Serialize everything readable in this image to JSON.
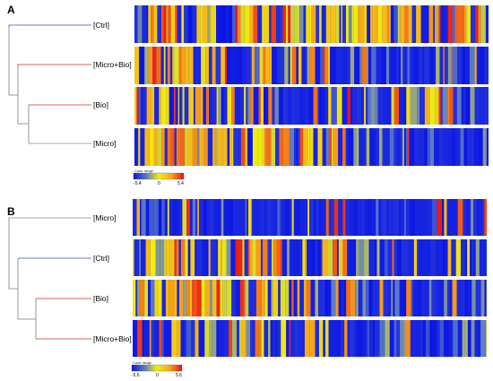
{
  "palette": {
    "low": "#0a14e6",
    "lowmid": "#5a78c8",
    "mid": "#f0ee10",
    "highmid": "#f7a81a",
    "high": "#ee1010",
    "branch_blue": "#3a4fb8",
    "branch_red": "#cc2a2a",
    "branch_gray": "#8a8a8a"
  },
  "panels": [
    {
      "letter": "A",
      "seed": 101,
      "color_range": {
        "title": "Color range",
        "min_label": "-5.4",
        "mid_label": "0",
        "max_label": "5.4"
      },
      "rows": [
        {
          "label": "[Ctrl]",
          "branch": "branch_blue",
          "profile": [
            0.62,
            0.66,
            0.7,
            0.72
          ]
        },
        {
          "label": "[Micro+Bio]",
          "branch": "branch_red",
          "profile": [
            0.6,
            0.48,
            0.12,
            0.04
          ]
        },
        {
          "label": "[Bio]",
          "branch": "branch_red",
          "profile": [
            0.62,
            0.45,
            0.3,
            0.22
          ]
        },
        {
          "label": "[Micro]",
          "branch": "branch_gray",
          "profile": [
            0.72,
            0.55,
            0.1,
            0.05
          ]
        }
      ]
    },
    {
      "letter": "B",
      "seed": 202,
      "color_range": {
        "title": "Color range",
        "min_label": "-5.6",
        "mid_label": "0",
        "max_label": "5.6"
      },
      "rows": [
        {
          "label": "[Micro]",
          "branch": "branch_gray",
          "profile": [
            0.35,
            0.22,
            0.1,
            0.12
          ]
        },
        {
          "label": "[Ctrl]",
          "branch": "branch_blue",
          "profile": [
            0.55,
            0.62,
            0.15,
            0.08
          ]
        },
        {
          "label": "[Bio]",
          "branch": "branch_red",
          "profile": [
            0.62,
            0.5,
            0.12,
            0.05
          ]
        },
        {
          "label": "[Micro+Bio]",
          "branch": "branch_red",
          "profile": [
            0.62,
            0.4,
            0.15,
            0.12
          ]
        }
      ]
    }
  ]
}
